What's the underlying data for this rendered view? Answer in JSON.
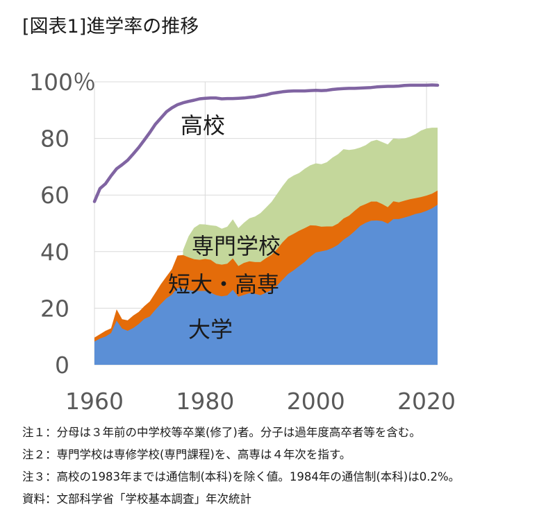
{
  "title": "[図表1]進学率の推移",
  "colors": {
    "daigaku": "#5b8fd6",
    "tandai": "#e46c0a",
    "senmon": "#c4d79b",
    "koukou": "#8064a2",
    "grid": "#d9d9d9",
    "axis_text": "#595959"
  },
  "chart_data": {
    "type": "area",
    "title": "進学率の推移",
    "xlim": [
      1960,
      2022
    ],
    "ylim": [
      0,
      100
    ],
    "x_ticks": [
      1960,
      1980,
      2000,
      2020
    ],
    "y_ticks": [
      0,
      20,
      40,
      60,
      80,
      100
    ],
    "y_tick_labels": [
      "0",
      "20",
      "40",
      "60",
      "80",
      "100％"
    ],
    "grid": true,
    "years": [
      1960,
      1961,
      1962,
      1963,
      1964,
      1965,
      1966,
      1967,
      1968,
      1969,
      1970,
      1971,
      1972,
      1973,
      1974,
      1975,
      1976,
      1977,
      1978,
      1979,
      1980,
      1981,
      1982,
      1983,
      1984,
      1985,
      1986,
      1987,
      1988,
      1989,
      1990,
      1991,
      1992,
      1993,
      1994,
      1995,
      1996,
      1997,
      1998,
      1999,
      2000,
      2001,
      2002,
      2003,
      2004,
      2005,
      2006,
      2007,
      2008,
      2009,
      2010,
      2011,
      2012,
      2013,
      2014,
      2015,
      2016,
      2017,
      2018,
      2019,
      2020,
      2021,
      2022
    ],
    "series": [
      {
        "name": "大学",
        "stack": "bottom",
        "values": [
          8.2,
          9.3,
          10.0,
          11.2,
          15.6,
          12.8,
          12.0,
          13.0,
          14.4,
          16.2,
          17.1,
          19.4,
          21.5,
          23.5,
          24.8,
          27.2,
          26.9,
          26.4,
          26.1,
          26.1,
          26.1,
          25.5,
          24.6,
          24.2,
          24.5,
          26.5,
          24.1,
          24.7,
          25.3,
          25.1,
          24.6,
          25.5,
          26.4,
          28.0,
          30.1,
          32.1,
          33.4,
          34.9,
          36.4,
          38.2,
          39.7,
          40.1,
          40.5,
          41.3,
          42.4,
          44.2,
          45.5,
          47.2,
          49.1,
          50.2,
          50.9,
          51.0,
          50.8,
          49.9,
          51.5,
          51.5,
          52.0,
          52.6,
          53.3,
          53.7,
          54.4,
          55.3,
          56.6
        ]
      },
      {
        "name": "短大・高専",
        "stack": "cumulative",
        "values": [
          9.6,
          10.8,
          12.0,
          12.9,
          19.6,
          16.1,
          15.7,
          17.4,
          18.7,
          20.7,
          22.4,
          25.4,
          28.5,
          31.2,
          33.8,
          38.6,
          38.8,
          38.0,
          37.3,
          37.1,
          37.4,
          37.1,
          35.7,
          35.4,
          35.7,
          37.6,
          34.9,
          36.0,
          36.6,
          36.3,
          36.3,
          37.7,
          38.9,
          40.9,
          43.3,
          45.3,
          46.3,
          47.4,
          48.3,
          49.3,
          49.2,
          48.8,
          48.9,
          48.9,
          49.9,
          51.7,
          52.7,
          54.4,
          56.0,
          56.8,
          57.7,
          57.7,
          56.8,
          55.7,
          57.8,
          57.4,
          58.0,
          58.5,
          58.9,
          59.3,
          59.8,
          60.5,
          61.6
        ]
      },
      {
        "name": "専門学校",
        "stack": "cumulative",
        "values": [
          null,
          null,
          null,
          null,
          null,
          null,
          null,
          null,
          null,
          null,
          null,
          null,
          null,
          null,
          null,
          null,
          40.5,
          45.4,
          48.4,
          49.7,
          49.6,
          49.3,
          49.1,
          48.1,
          48.8,
          51.4,
          48.3,
          50.2,
          51.8,
          52.4,
          53.6,
          55.6,
          57.6,
          60.4,
          63.2,
          65.7,
          66.9,
          67.8,
          69.3,
          70.5,
          71.2,
          70.9,
          71.6,
          73.2,
          74.4,
          76.2,
          75.9,
          76.2,
          76.8,
          77.6,
          79.0,
          79.5,
          78.7,
          77.9,
          80.0,
          79.8,
          80.0,
          80.6,
          81.5,
          82.8,
          83.5,
          83.8,
          83.8
        ]
      },
      {
        "name": "高校",
        "stack": "line",
        "values": [
          57.7,
          62.3,
          64.0,
          66.8,
          69.3,
          70.7,
          72.3,
          74.5,
          76.8,
          79.4,
          82.1,
          85.0,
          87.2,
          89.4,
          90.8,
          91.9,
          92.6,
          93.1,
          93.5,
          94.0,
          94.2,
          94.3,
          94.3,
          94.0,
          94.1,
          94.1,
          94.2,
          94.3,
          94.5,
          94.7,
          95.1,
          95.4,
          95.9,
          96.2,
          96.5,
          96.7,
          96.8,
          96.8,
          96.8,
          96.9,
          97.0,
          96.9,
          97.0,
          97.3,
          97.5,
          97.6,
          97.7,
          97.7,
          97.8,
          97.9,
          98.0,
          98.2,
          98.3,
          98.4,
          98.4,
          98.5,
          98.7,
          98.8,
          98.8,
          98.8,
          98.8,
          98.9,
          98.8
        ]
      }
    ],
    "annotations": [
      "高校",
      "専門学校",
      "短大・高専",
      "大学"
    ]
  },
  "notes": [
    "注１：分母は３年前の中学校等卒業(修了)者。分子は過年度高卒者等を含む。",
    "注２：専門学校は専修学校(専門課程)を、高専は４年次を指す。",
    "注３：高校の1983年までは通信制(本科)を除く値。1984年の通信制(本科)は0.2%。",
    "資料：文部科学省「学校基本調査」年次統計"
  ]
}
